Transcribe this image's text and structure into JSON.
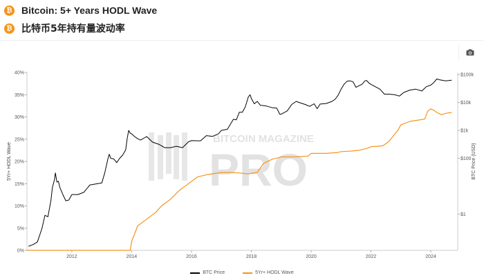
{
  "header": {
    "badge": "₿",
    "title_en": "Bitcoin: 5+ Years HODL Wave",
    "title_cn": "比特币5年持有量波动率"
  },
  "toolbar": {
    "camera_icon": "camera-icon"
  },
  "watermark": {
    "line1": "BITCOIN MAGAZINE",
    "line2": "PRO"
  },
  "chart_data": {
    "type": "line",
    "title": "",
    "xlabel": "",
    "ylabel": "5Yr+ HODL Wave",
    "y2label": "BTC Price (USD)",
    "xlim": [
      2010.5,
      2024.9
    ],
    "x_ticks": [
      "2012",
      "2014",
      "2016",
      "2018",
      "2020",
      "2022",
      "2024"
    ],
    "x_tick_values": [
      2012,
      2014,
      2016,
      2018,
      2020,
      2022,
      2024
    ],
    "ylim": [
      0,
      40
    ],
    "y_ticks": [
      "0%",
      "5%",
      "10%",
      "15%",
      "20%",
      "25%",
      "30%",
      "35%",
      "40%"
    ],
    "y_tick_values": [
      0,
      5,
      10,
      15,
      20,
      25,
      30,
      35,
      40
    ],
    "y2_scale": "log",
    "y2lim": [
      0.05,
      120000
    ],
    "y2_ticks": [
      "$1",
      "$100",
      "$1k",
      "$10k",
      "$100k"
    ],
    "y2_tick_values": [
      1,
      100,
      1000,
      10000,
      100000
    ],
    "grid": false,
    "legend_position": "bottom-center",
    "colors": {
      "btc_price": "#000000",
      "hodl": "#f7931a"
    },
    "series": [
      {
        "name": "BTC Price",
        "axis": "right",
        "x": [
          2010.55,
          2010.7,
          2010.85,
          2011.0,
          2011.1,
          2011.2,
          2011.3,
          2011.35,
          2011.42,
          2011.45,
          2011.5,
          2011.55,
          2011.6,
          2011.7,
          2011.8,
          2011.9,
          2012.0,
          2012.2,
          2012.4,
          2012.6,
          2012.8,
          2013.0,
          2013.1,
          2013.2,
          2013.25,
          2013.3,
          2013.4,
          2013.5,
          2013.6,
          2013.7,
          2013.8,
          2013.85,
          2013.9,
          2013.95,
          2014.0,
          2014.1,
          2014.2,
          2014.3,
          2014.5,
          2014.7,
          2014.9,
          2015.0,
          2015.1,
          2015.3,
          2015.5,
          2015.7,
          2015.9,
          2016.0,
          2016.3,
          2016.5,
          2016.7,
          2016.9,
          2017.0,
          2017.2,
          2017.4,
          2017.5,
          2017.6,
          2017.7,
          2017.8,
          2017.9,
          2017.96,
          2018.0,
          2018.1,
          2018.2,
          2018.3,
          2018.5,
          2018.7,
          2018.85,
          2018.95,
          2019.0,
          2019.2,
          2019.35,
          2019.5,
          2019.6,
          2019.8,
          2019.95,
          2020.1,
          2020.2,
          2020.3,
          2020.5,
          2020.7,
          2020.8,
          2020.9,
          2021.0,
          2021.1,
          2021.2,
          2021.3,
          2021.4,
          2021.5,
          2021.6,
          2021.7,
          2021.8,
          2021.85,
          2021.95,
          2022.1,
          2022.3,
          2022.45,
          2022.6,
          2022.8,
          2022.95,
          2023.1,
          2023.3,
          2023.5,
          2023.7,
          2023.85,
          2024.0,
          2024.1,
          2024.2,
          2024.3,
          2024.5,
          2024.7
        ],
        "y": [
          0.07,
          0.08,
          0.1,
          0.3,
          0.9,
          0.8,
          3,
          9,
          17,
          30,
          14,
          15,
          9,
          5,
          3,
          3.2,
          5,
          5,
          6,
          11,
          12,
          13,
          30,
          90,
          140,
          100,
          95,
          70,
          100,
          130,
          200,
          500,
          1000,
          800,
          750,
          600,
          500,
          450,
          600,
          380,
          320,
          280,
          240,
          240,
          270,
          240,
          390,
          430,
          420,
          650,
          610,
          750,
          1000,
          1100,
          2500,
          2400,
          4500,
          4500,
          7000,
          16000,
          19000,
          14000,
          9000,
          11000,
          8000,
          7500,
          6500,
          6300,
          3800,
          3800,
          5000,
          8500,
          11000,
          10000,
          8500,
          7300,
          9000,
          6000,
          8800,
          9200,
          11000,
          13000,
          18000,
          30000,
          45000,
          58000,
          60000,
          55000,
          35000,
          40000,
          45000,
          60000,
          62000,
          48000,
          39000,
          30000,
          20000,
          20000,
          19000,
          17000,
          23000,
          28000,
          30000,
          26000,
          37000,
          42000,
          52000,
          70000,
          65000,
          60000,
          63000
        ]
      },
      {
        "name": "5Yr+ HODL Wave",
        "axis": "left",
        "x": [
          2010.5,
          2013.95,
          2014.0,
          2014.2,
          2014.5,
          2014.8,
          2015.0,
          2015.3,
          2015.6,
          2015.9,
          2016.2,
          2016.5,
          2016.8,
          2017.0,
          2017.3,
          2017.6,
          2017.9,
          2018.0,
          2018.2,
          2018.4,
          2018.7,
          2018.9,
          2019.0,
          2019.5,
          2019.9,
          2020.0,
          2020.5,
          2020.9,
          2021.0,
          2021.3,
          2021.6,
          2021.9,
          2022.0,
          2022.2,
          2022.4,
          2022.6,
          2022.9,
          2023.0,
          2023.3,
          2023.6,
          2023.8,
          2023.85,
          2023.9,
          2024.0,
          2024.1,
          2024.2,
          2024.35,
          2024.5,
          2024.7
        ],
        "y": [
          0,
          0,
          2.0,
          5.5,
          7.0,
          8.5,
          10.0,
          11.5,
          13.5,
          15.0,
          16.5,
          17.0,
          17.3,
          17.5,
          17.5,
          17.4,
          17.2,
          17.3,
          17.5,
          19.5,
          20.5,
          20.8,
          21.0,
          21.0,
          21.2,
          21.8,
          21.8,
          22.0,
          22.2,
          22.3,
          22.5,
          23.0,
          23.3,
          23.4,
          23.5,
          24.5,
          27.0,
          28.2,
          29.0,
          29.3,
          29.5,
          30.5,
          31.3,
          31.8,
          31.5,
          31.0,
          30.5,
          30.8,
          31.0
        ]
      }
    ]
  }
}
